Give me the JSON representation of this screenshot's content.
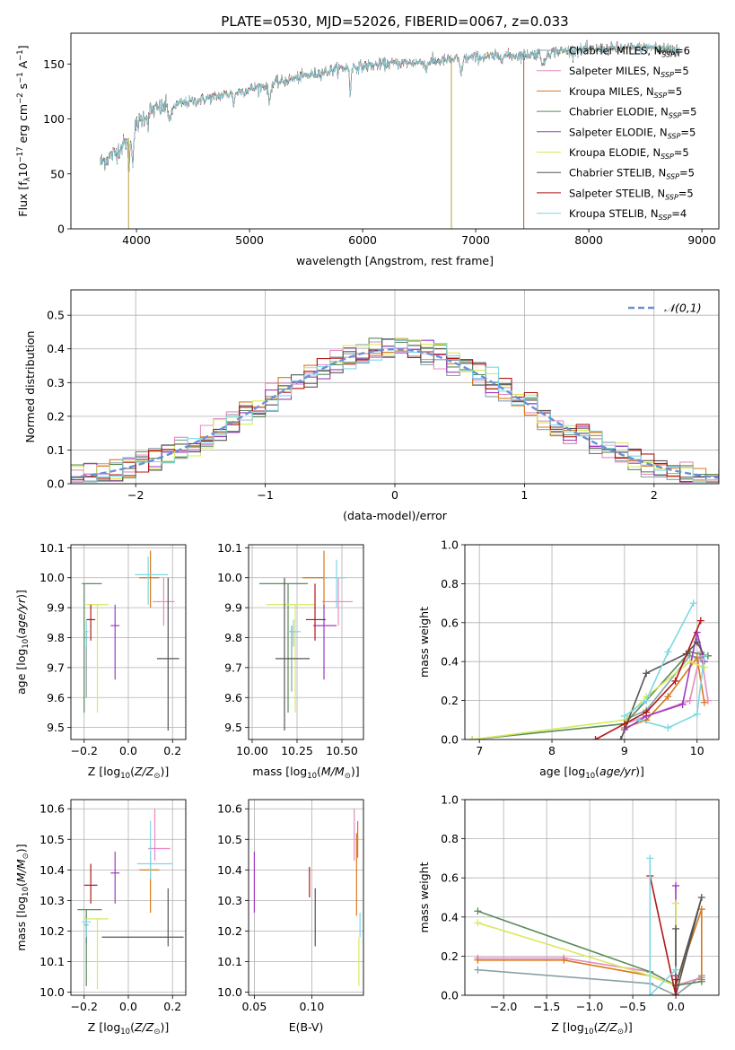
{
  "figure_title": "PLATE=0530, MJD=52026, FIBERID=0067, z=0.033",
  "legend_entries": [
    {
      "name": "Chabrier MILES",
      "nssp": "6",
      "color": "#8aa1a6"
    },
    {
      "name": "Salpeter MILES",
      "nssp": "5",
      "color": "#e58bc3"
    },
    {
      "name": "Kroupa MILES",
      "nssp": "5",
      "color": "#d9781c"
    },
    {
      "name": "Chabrier ELODIE",
      "nssp": "5",
      "color": "#5a8a5a"
    },
    {
      "name": "Salpeter ELODIE",
      "nssp": "5",
      "color": "#a03ac0"
    },
    {
      "name": "Kroupa ELODIE",
      "nssp": "5",
      "color": "#d7ea5c"
    },
    {
      "name": "Chabrier STELIB",
      "nssp": "5",
      "color": "#555555"
    },
    {
      "name": "Salpeter STELIB",
      "nssp": "5",
      "color": "#b01818"
    },
    {
      "name": "Kroupa STELIB",
      "nssp": "4",
      "color": "#7fd7e3"
    }
  ],
  "chart_data": [
    {
      "id": "spectrum",
      "type": "line",
      "xlabel": "wavelength [Angstrom, rest frame]",
      "ylabel": "Flux [f_λ 10^-17 erg cm^-2 s^-1 A^-1]",
      "xlim": [
        3420,
        9150
      ],
      "ylim": [
        0,
        178
      ],
      "xticks": [
        4000,
        5000,
        6000,
        7000,
        8000,
        9000
      ],
      "yticks": [
        0,
        50,
        100,
        150
      ],
      "continuum": {
        "x": [
          3680,
          3800,
          3900,
          4000,
          4100,
          4300,
          4600,
          5000,
          5400,
          5800,
          6200,
          6600,
          7000,
          7400,
          7800,
          8200,
          8600,
          8800
        ],
        "y": [
          60,
          68,
          78,
          94,
          107,
          112,
          118,
          127,
          137,
          146,
          150,
          152,
          156,
          158,
          162,
          164,
          165,
          164
        ]
      },
      "notes": "9 overlapping model/data spectra, one per legend entry"
    },
    {
      "id": "residuals",
      "type": "step-histogram",
      "xlabel": "(data-model)/error",
      "ylabel": "Normed distribution",
      "xlim": [
        -2.5,
        2.5
      ],
      "ylim": [
        0,
        0.575
      ],
      "xticks": [
        -2,
        -1,
        0,
        1,
        2
      ],
      "yticks": [
        0.0,
        0.1,
        0.2,
        0.3,
        0.4,
        0.5
      ],
      "reference_curve": {
        "name": "𝒩(0,1)",
        "mean": 0,
        "sigma": 1,
        "color": "#6a8fd6"
      },
      "legend_position": "top-right"
    },
    {
      "id": "age-vs-Z",
      "type": "errorbar",
      "xlabel": "Z [log10(Z/Z⊙)]",
      "ylabel": "age  [log10(age/yr)]",
      "xlim": [
        -0.26,
        0.26
      ],
      "ylim": [
        9.46,
        10.11
      ],
      "xticks": [
        -0.2,
        0.0,
        0.2
      ],
      "yticks": [
        9.5,
        9.6,
        9.7,
        9.8,
        9.9,
        10.0,
        10.1
      ],
      "points": [
        {
          "series": "Chabrier MILES",
          "x": -0.19,
          "y": 9.8,
          "ex": [
            0.01,
            0.01
          ],
          "ey": [
            0.2,
            0.02
          ]
        },
        {
          "series": "Salpeter MILES",
          "x": 0.16,
          "y": 9.92,
          "ex": [
            0.05,
            0.05
          ],
          "ey": [
            0.08,
            0.08
          ]
        },
        {
          "series": "Kroupa MILES",
          "x": 0.1,
          "y": 10.0,
          "ex": [
            0.05,
            0.04
          ],
          "ey": [
            0.1,
            0.09
          ]
        },
        {
          "series": "Chabrier ELODIE",
          "x": -0.2,
          "y": 9.98,
          "ex": [
            0.01,
            0.08
          ],
          "ey": [
            0.43,
            0.0
          ]
        },
        {
          "series": "Salpeter ELODIE",
          "x": -0.06,
          "y": 9.84,
          "ex": [
            0.02,
            0.02
          ],
          "ey": [
            0.18,
            0.07
          ]
        },
        {
          "series": "Kroupa ELODIE",
          "x": -0.14,
          "y": 9.91,
          "ex": [
            0.05,
            0.05
          ],
          "ey": [
            0.36,
            0.0
          ]
        },
        {
          "series": "Chabrier STELIB",
          "x": 0.18,
          "y": 9.73,
          "ex": [
            0.05,
            0.05
          ],
          "ey": [
            0.24,
            0.27
          ]
        },
        {
          "series": "Salpeter STELIB",
          "x": -0.17,
          "y": 9.86,
          "ex": [
            0.02,
            0.02
          ],
          "ey": [
            0.07,
            0.05
          ]
        },
        {
          "series": "Kroupa STELIB",
          "x": -0.19,
          "y": 9.82,
          "ex": [
            0.01,
            0.01
          ],
          "ey": [
            0.05,
            0.04
          ]
        },
        {
          "series": "Kroupa STELIB",
          "x": 0.09,
          "y": 10.01,
          "ex": [
            0.06,
            0.09
          ],
          "ey": [
            0.1,
            0.06
          ]
        }
      ]
    },
    {
      "id": "age-vs-mass",
      "type": "errorbar",
      "xlabel": "mass [log10(M/M⊙)]",
      "ylabel": "",
      "xlim": [
        9.98,
        10.62
      ],
      "ylim": [
        9.46,
        10.11
      ],
      "xticks": [
        10.0,
        10.25,
        10.5
      ],
      "yticks": [
        9.5,
        9.6,
        9.7,
        9.8,
        9.9,
        10.0,
        10.1
      ],
      "points": [
        {
          "series": "Chabrier MILES",
          "x": 10.22,
          "y": 9.82,
          "ex": [
            0.02,
            0.02
          ],
          "ey": [
            0.2,
            0.02
          ]
        },
        {
          "series": "Salpeter MILES",
          "x": 10.48,
          "y": 9.92,
          "ex": [
            0.09,
            0.08
          ],
          "ey": [
            0.08,
            0.08
          ]
        },
        {
          "series": "Kroupa MILES",
          "x": 10.4,
          "y": 10.0,
          "ex": [
            0.12,
            0.02
          ],
          "ey": [
            0.1,
            0.09
          ]
        },
        {
          "series": "Chabrier ELODIE",
          "x": 10.2,
          "y": 9.98,
          "ex": [
            0.16,
            0.11
          ],
          "ey": [
            0.43,
            0.0
          ]
        },
        {
          "series": "Salpeter ELODIE",
          "x": 10.4,
          "y": 9.84,
          "ex": [
            0.06,
            0.07
          ],
          "ey": [
            0.18,
            0.07
          ]
        },
        {
          "series": "Kroupa ELODIE",
          "x": 10.24,
          "y": 9.91,
          "ex": [
            0.16,
            0.11
          ],
          "ey": [
            0.36,
            0.0
          ]
        },
        {
          "series": "Chabrier STELIB",
          "x": 10.18,
          "y": 9.73,
          "ex": [
            0.05,
            0.14
          ],
          "ey": [
            0.24,
            0.27
          ]
        },
        {
          "series": "Salpeter STELIB",
          "x": 10.35,
          "y": 9.86,
          "ex": [
            0.05,
            0.06
          ],
          "ey": [
            0.07,
            0.12
          ]
        },
        {
          "series": "Kroupa STELIB",
          "x": 10.23,
          "y": 9.82,
          "ex": [
            0.03,
            0.04
          ],
          "ey": [
            0.05,
            0.04
          ]
        },
        {
          "series": "Kroupa STELIB",
          "x": 10.47,
          "y": 10.0,
          "ex": [
            0.07,
            0.05
          ],
          "ey": [
            0.1,
            0.06
          ]
        }
      ]
    },
    {
      "id": "massweight-vs-age",
      "type": "line",
      "xlabel": "age  [log10(age/yr)]",
      "ylabel": "mass weight",
      "xlim": [
        6.8,
        10.3
      ],
      "ylim": [
        0.0,
        1.0
      ],
      "xticks": [
        7,
        8,
        9,
        10
      ],
      "yticks": [
        0.0,
        0.2,
        0.4,
        0.6,
        0.8,
        1.0
      ],
      "series": [
        {
          "name": "Chabrier MILES",
          "x": [
            9.0,
            9.3,
            9.9,
            10.05,
            10.15
          ],
          "y": [
            0.1,
            0.15,
            0.43,
            0.42,
            0.43
          ]
        },
        {
          "name": "Salpeter MILES",
          "x": [
            9.0,
            9.3,
            9.9,
            10.05,
            10.15
          ],
          "y": [
            0.08,
            0.12,
            0.2,
            0.45,
            0.2
          ]
        },
        {
          "name": "Kroupa MILES",
          "x": [
            9.0,
            9.3,
            9.6,
            10.0,
            10.1
          ],
          "y": [
            0.06,
            0.1,
            0.22,
            0.42,
            0.19
          ]
        },
        {
          "name": "Chabrier ELODIE",
          "x": [
            6.9,
            9.0,
            9.3,
            9.9,
            10.15
          ],
          "y": [
            0.0,
            0.08,
            0.2,
            0.45,
            0.43
          ]
        },
        {
          "name": "Salpeter ELODIE",
          "x": [
            9.0,
            9.3,
            9.8,
            10.0,
            10.1
          ],
          "y": [
            0.05,
            0.12,
            0.18,
            0.55,
            0.4
          ]
        },
        {
          "name": "Kroupa ELODIE",
          "x": [
            6.9,
            9.0,
            9.3,
            9.9,
            10.1
          ],
          "y": [
            0.0,
            0.1,
            0.22,
            0.4,
            0.37
          ]
        },
        {
          "name": "Chabrier STELIB",
          "x": [
            8.95,
            9.3,
            9.85,
            10.0,
            10.1
          ],
          "y": [
            0.0,
            0.34,
            0.44,
            0.5,
            0.43
          ]
        },
        {
          "name": "Salpeter STELIB",
          "x": [
            8.6,
            9.0,
            9.3,
            9.7,
            10.05
          ],
          "y": [
            0.0,
            0.08,
            0.14,
            0.3,
            0.61
          ]
        },
        {
          "name": "Kroupa STELIB",
          "x": [
            9.0,
            9.3,
            9.6,
            9.95
          ],
          "y": [
            0.12,
            0.2,
            0.45,
            0.7
          ]
        },
        {
          "name": "Kroupa STELIB",
          "x": [
            9.2,
            9.6,
            10.0,
            10.1
          ],
          "y": [
            0.1,
            0.06,
            0.13,
            0.43
          ]
        }
      ]
    },
    {
      "id": "mass-vs-Z",
      "type": "errorbar",
      "xlabel": "Z [log10(Z/Z⊙)]",
      "ylabel": "mass [log10(M/M⊙)]",
      "xlim": [
        -0.26,
        0.26
      ],
      "ylim": [
        9.99,
        10.63
      ],
      "xticks": [
        -0.2,
        0.0,
        0.2
      ],
      "yticks": [
        10.0,
        10.1,
        10.2,
        10.3,
        10.4,
        10.5,
        10.6
      ],
      "points": [
        {
          "series": "Chabrier MILES",
          "x": -0.19,
          "y": 10.22,
          "ex": [
            0.01,
            0.01
          ],
          "ey": [
            0.06,
            0.03
          ]
        },
        {
          "series": "Salpeter MILES",
          "x": 0.12,
          "y": 10.47,
          "ex": [
            0.03,
            0.07
          ],
          "ey": [
            0.04,
            0.13
          ]
        },
        {
          "series": "Kroupa MILES",
          "x": 0.1,
          "y": 10.4,
          "ex": [
            0.05,
            0.04
          ],
          "ey": [
            0.14,
            0.06
          ]
        },
        {
          "series": "Chabrier ELODIE",
          "x": -0.19,
          "y": 10.27,
          "ex": [
            0.04,
            0.07
          ],
          "ey": [
            0.25,
            0.0
          ]
        },
        {
          "series": "Salpeter ELODIE",
          "x": -0.06,
          "y": 10.39,
          "ex": [
            0.02,
            0.02
          ],
          "ey": [
            0.1,
            0.07
          ]
        },
        {
          "series": "Kroupa ELODIE",
          "x": -0.14,
          "y": 10.24,
          "ex": [
            0.06,
            0.05
          ],
          "ey": [
            0.23,
            0.0
          ]
        },
        {
          "series": "Chabrier STELIB",
          "x": 0.18,
          "y": 10.18,
          "ex": [
            0.3,
            0.07
          ],
          "ey": [
            0.03,
            0.16
          ]
        },
        {
          "series": "Salpeter STELIB",
          "x": -0.17,
          "y": 10.35,
          "ex": [
            0.03,
            0.03
          ],
          "ey": [
            0.06,
            0.07
          ]
        },
        {
          "series": "Kroupa STELIB",
          "x": -0.19,
          "y": 10.23,
          "ex": [
            0.02,
            0.02
          ],
          "ey": [
            0.05,
            0.01
          ]
        },
        {
          "series": "Kroupa STELIB",
          "x": 0.1,
          "y": 10.42,
          "ex": [
            0.06,
            0.1
          ],
          "ey": [
            0.05,
            0.14
          ]
        }
      ]
    },
    {
      "id": "mass-vs-EBV",
      "type": "errorbar",
      "xlabel": "E(B-V)",
      "ylabel": "",
      "xlim": [
        0.045,
        0.145
      ],
      "ylim": [
        9.99,
        10.63
      ],
      "xticks": [
        0.05,
        0.1
      ],
      "yticks": [
        10.0,
        10.1,
        10.2,
        10.3,
        10.4,
        10.5,
        10.6
      ],
      "points": [
        {
          "series": "Salpeter ELODIE",
          "x": 0.05,
          "y": 10.36,
          "ey": [
            0.1,
            0.1
          ]
        },
        {
          "series": "Salpeter STELIB",
          "x": 0.098,
          "y": 10.36,
          "ey": [
            0.05,
            0.05
          ]
        },
        {
          "series": "Chabrier STELIB",
          "x": 0.103,
          "y": 10.24,
          "ey": [
            0.09,
            0.1
          ]
        },
        {
          "series": "Salpeter MILES",
          "x": 0.137,
          "y": 10.51,
          "ey": [
            0.08,
            0.09
          ]
        },
        {
          "series": "Kroupa MILES",
          "x": 0.139,
          "y": 10.37,
          "ey": [
            0.12,
            0.15
          ]
        },
        {
          "series": "Kroupa MILES",
          "x": 0.14,
          "y": 10.48,
          "ey": [
            0.04,
            0.08
          ]
        },
        {
          "series": "Kroupa ELODIE",
          "x": 0.141,
          "y": 10.1,
          "ey": [
            0.08,
            0.08
          ]
        },
        {
          "series": "Kroupa STELIB",
          "x": 0.142,
          "y": 10.21,
          "ey": [
            0.03,
            0.05
          ]
        }
      ]
    },
    {
      "id": "massweight-vs-Z",
      "type": "line",
      "xlabel": "Z [log10(Z/Z⊙)]",
      "ylabel": "mass weight",
      "xlim": [
        -2.45,
        0.5
      ],
      "ylim": [
        0.0,
        1.0
      ],
      "xticks": [
        -2.0,
        -1.5,
        -1.0,
        -0.5,
        0.0
      ],
      "yticks": [
        0.0,
        0.2,
        0.4,
        0.6,
        0.8,
        1.0
      ],
      "series": [
        {
          "name": "Chabrier MILES",
          "x": [
            -2.3,
            -0.3,
            0.0,
            0.3
          ],
          "y": [
            0.13,
            0.06,
            0.0,
            0.1
          ]
        },
        {
          "name": "Salpeter MILES",
          "x": [
            -2.3,
            -1.3,
            -0.3,
            0.0,
            0.3
          ],
          "y": [
            0.19,
            0.19,
            0.12,
            0.05,
            0.09
          ]
        },
        {
          "name": "Kroupa MILES",
          "x": [
            -2.3,
            -1.3,
            -0.3,
            0.0,
            0.3,
            0.3
          ],
          "y": [
            0.18,
            0.18,
            0.1,
            0.05,
            0.44,
            0.08
          ]
        },
        {
          "name": "Chabrier ELODIE",
          "x": [
            -2.3,
            -0.3,
            0.0,
            0.3
          ],
          "y": [
            0.43,
            0.12,
            0.05,
            0.07
          ]
        },
        {
          "name": "Salpeter ELODIE",
          "x": [
            0.0,
            0.0,
            0.0
          ],
          "y": [
            0.56,
            0.1,
            0.0
          ]
        },
        {
          "name": "Kroupa ELODIE",
          "x": [
            -2.3,
            -0.3,
            0.0,
            0.0
          ],
          "y": [
            0.37,
            0.1,
            0.05,
            0.47
          ]
        },
        {
          "name": "Chabrier STELIB",
          "x": [
            0.0,
            0.0,
            0.3,
            0.0
          ],
          "y": [
            0.34,
            0.05,
            0.5,
            0.0
          ]
        },
        {
          "name": "Salpeter STELIB",
          "x": [
            -0.3,
            0.0,
            0.0
          ],
          "y": [
            0.61,
            0.0,
            0.08
          ]
        },
        {
          "name": "Kroupa STELIB",
          "x": [
            -0.3,
            -0.3,
            0.0
          ],
          "y": [
            0.7,
            0.0,
            0.13
          ]
        }
      ]
    }
  ]
}
